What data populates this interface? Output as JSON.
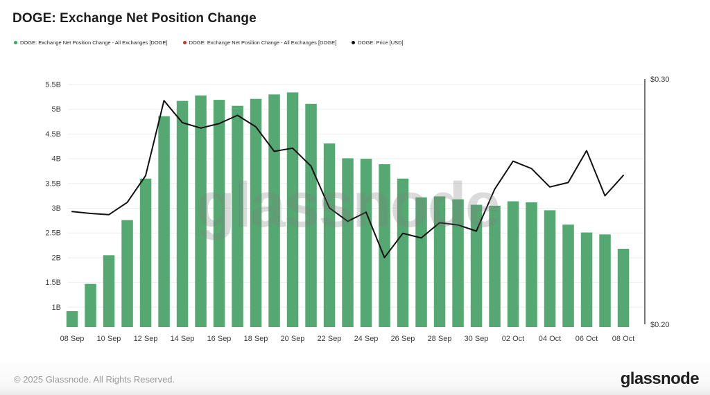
{
  "header": {
    "title": "DOGE: Exchange Net Position Change"
  },
  "legend": [
    {
      "label": "DOGE: Exchange Net Position Change - All Exchanges [DOGE]",
      "color": "#3fa85f",
      "icon": "green-dot"
    },
    {
      "label": "DOGE: Exchange Net Position Change - All Exchanges [DOGE]",
      "color": "#c2392b",
      "icon": "red-dot"
    },
    {
      "label": "DOGE: Price [USD]",
      "color": "#111111",
      "icon": "black-dot"
    }
  ],
  "watermark": "glassnode",
  "footer": {
    "copyright": "© 2025 Glassnode. All Rights Reserved.",
    "logo": "glassnode"
  },
  "chart_data": {
    "type": "bar",
    "title": "DOGE: Exchange Net Position Change",
    "categories": [
      "08 Sep",
      "09 Sep",
      "10 Sep",
      "11 Sep",
      "12 Sep",
      "13 Sep",
      "14 Sep",
      "15 Sep",
      "16 Sep",
      "17 Sep",
      "18 Sep",
      "19 Sep",
      "20 Sep",
      "21 Sep",
      "22 Sep",
      "23 Sep",
      "24 Sep",
      "25 Sep",
      "26 Sep",
      "27 Sep",
      "28 Sep",
      "29 Sep",
      "30 Sep",
      "01 Oct",
      "02 Oct",
      "03 Oct",
      "04 Oct",
      "05 Oct",
      "06 Oct",
      "07 Oct",
      "08 Oct"
    ],
    "x_tick_labels": [
      "08 Sep",
      "10 Sep",
      "12 Sep",
      "14 Sep",
      "16 Sep",
      "18 Sep",
      "20 Sep",
      "22 Sep",
      "24 Sep",
      "26 Sep",
      "28 Sep",
      "30 Sep",
      "02 Oct",
      "04 Oct",
      "06 Oct",
      "08 Oct"
    ],
    "series": [
      {
        "name": "DOGE: Exchange Net Position Change - All Exchanges [DOGE]",
        "type": "bar",
        "axis": "left",
        "unit": "B DOGE",
        "color": "#55a871",
        "values": [
          0.92,
          1.47,
          2.05,
          2.76,
          3.6,
          4.86,
          5.17,
          5.28,
          5.19,
          5.07,
          5.21,
          5.3,
          5.34,
          5.11,
          4.31,
          4.01,
          4.0,
          3.89,
          3.6,
          3.22,
          3.24,
          3.18,
          3.07,
          3.05,
          3.14,
          3.12,
          2.96,
          2.67,
          2.51,
          2.47,
          2.18
        ]
      },
      {
        "name": "DOGE: Price [USD]",
        "type": "line",
        "axis": "right",
        "unit": "USD",
        "color": "#111111",
        "values": [
          0.246,
          0.2452,
          0.2447,
          0.2497,
          0.2606,
          0.2912,
          0.2822,
          0.28,
          0.2818,
          0.2852,
          0.2805,
          0.2705,
          0.2718,
          0.2645,
          0.2475,
          0.242,
          0.2457,
          0.2272,
          0.2371,
          0.2352,
          0.2414,
          0.2405,
          0.238,
          0.2551,
          0.2665,
          0.2635,
          0.256,
          0.2578,
          0.2708,
          0.2524,
          0.2607
        ]
      }
    ],
    "left_axis": {
      "ticks": [
        "5.5B",
        "5B",
        "4.5B",
        "4B",
        "3.5B",
        "3B",
        "2.5B",
        "2B",
        "1.5B",
        "1B"
      ],
      "tick_values": [
        5.5,
        5.0,
        4.5,
        4.0,
        3.5,
        3.0,
        2.5,
        2.0,
        1.5,
        1.0
      ],
      "min": 0.6,
      "max": 5.6
    },
    "right_axis": {
      "ticks": [
        "$0.30",
        "$0.20"
      ],
      "tick_values": [
        0.3,
        0.2
      ],
      "min": 0.2,
      "max": 0.3
    },
    "grid": true,
    "legend_position": "top-left"
  }
}
